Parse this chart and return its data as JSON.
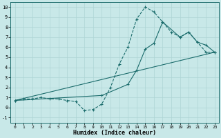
{
  "xlabel": "Humidex (Indice chaleur)",
  "xlim": [
    -0.5,
    23.5
  ],
  "ylim": [
    -1.5,
    10.5
  ],
  "xticks": [
    0,
    1,
    2,
    3,
    4,
    5,
    6,
    7,
    8,
    9,
    10,
    11,
    12,
    13,
    14,
    15,
    16,
    17,
    18,
    19,
    20,
    21,
    22,
    23
  ],
  "yticks": [
    -1,
    0,
    1,
    2,
    3,
    4,
    5,
    6,
    7,
    8,
    9,
    10
  ],
  "bg_color": "#c8e8e8",
  "grid_color": "#aed4d4",
  "line_color": "#1a6b6b",
  "line1_x": [
    0,
    1,
    2,
    3,
    4,
    5,
    6,
    7,
    8,
    9,
    10,
    11,
    12,
    13,
    14,
    15,
    16,
    17,
    18,
    19,
    20,
    21,
    22,
    23
  ],
  "line1_y": [
    0.7,
    0.85,
    0.85,
    1.0,
    0.85,
    0.85,
    0.7,
    0.6,
    -0.3,
    -0.2,
    0.35,
    2.0,
    4.3,
    6.0,
    8.8,
    10.0,
    9.5,
    8.5,
    7.5,
    7.0,
    7.5,
    6.5,
    5.5,
    5.5
  ],
  "line2_x": [
    0,
    23
  ],
  "line2_y": [
    0.7,
    5.5
  ],
  "line3_x": [
    0,
    10,
    13,
    14,
    15,
    16,
    17,
    19,
    20,
    21,
    22,
    23
  ],
  "line3_y": [
    0.7,
    1.2,
    2.3,
    3.7,
    5.8,
    6.4,
    8.5,
    7.0,
    7.5,
    6.5,
    6.2,
    5.5
  ]
}
